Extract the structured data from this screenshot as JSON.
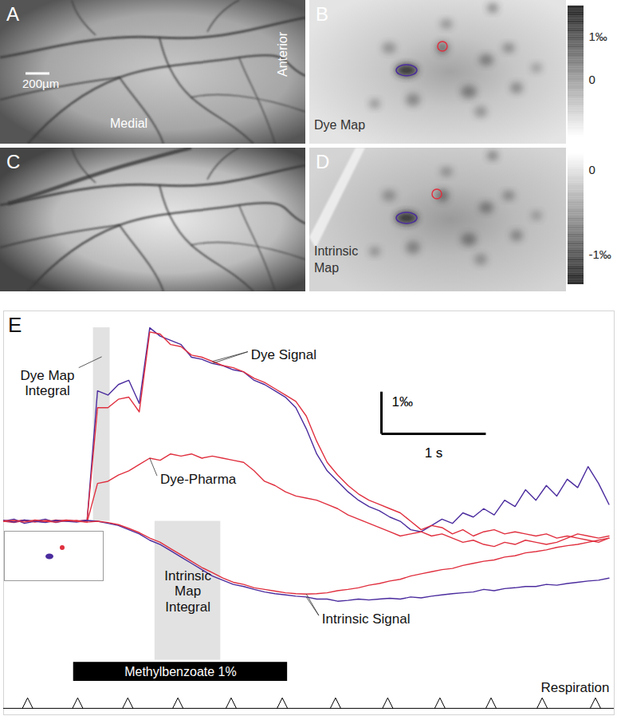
{
  "images": {
    "A": {
      "label": "A",
      "scale_bar": "200µm",
      "texts": [
        "Medial",
        "Anterior"
      ]
    },
    "B": {
      "label": "B",
      "caption": "Dye Map",
      "colorbar": {
        "range": [
          -1.3,
          1.7
        ],
        "ticks": [
          {
            "value": 1,
            "label": "1‰"
          },
          0
        ],
        "colors": [
          "#ffffff",
          "#1e1e1e"
        ]
      }
    },
    "C": {
      "label": "C"
    },
    "D": {
      "label": "D",
      "caption": "Intrinsic Map",
      "colorbar": {
        "range": [
          -1.35,
          0.2
        ],
        "ticks": [
          0,
          {
            "value": -1,
            "label": "-1‰"
          }
        ],
        "colors": [
          "#1e1e1e",
          "#ffffff"
        ]
      }
    }
  },
  "chart_data": {
    "type": "line",
    "title": "E",
    "tick_labels": false,
    "xlim": [
      0,
      5.85
    ],
    "ylim": [
      -4.6,
      5.0
    ],
    "x": [
      0.0,
      0.1,
      0.2,
      0.3,
      0.4,
      0.5,
      0.6,
      0.7,
      0.8,
      0.9,
      1.0,
      1.1,
      1.2,
      1.3,
      1.4,
      1.5,
      1.6,
      1.7,
      1.8,
      1.9,
      2.0,
      2.1,
      2.2,
      2.3,
      2.4,
      2.5,
      2.6,
      2.7,
      2.8,
      2.9,
      3.0,
      3.1,
      3.2,
      3.3,
      3.4,
      3.5,
      3.6,
      3.7,
      3.8,
      3.9,
      4.0,
      4.1,
      4.2,
      4.3,
      4.4,
      4.5,
      4.6,
      4.7,
      4.8,
      4.9,
      5.0,
      5.1,
      5.2,
      5.3,
      5.4,
      5.5,
      5.6,
      5.7,
      5.8
    ],
    "series": [
      {
        "name": "Dye Signal",
        "color": "#4b2c9e",
        "values": [
          0.0,
          0.05,
          -0.05,
          0.0,
          0.05,
          -0.03,
          0.02,
          0.0,
          0.03,
          3.1,
          3.0,
          3.25,
          3.35,
          2.8,
          4.6,
          4.4,
          4.3,
          4.2,
          3.9,
          3.85,
          3.75,
          3.7,
          3.6,
          3.55,
          3.35,
          3.25,
          3.1,
          2.95,
          2.7,
          2.2,
          1.6,
          1.2,
          0.95,
          0.7,
          0.5,
          0.35,
          0.25,
          0.1,
          0.0,
          -0.2,
          -0.25,
          -0.1,
          0.05,
          -0.05,
          0.2,
          0.1,
          0.3,
          0.15,
          0.5,
          0.35,
          0.75,
          0.5,
          0.85,
          0.6,
          1.0,
          0.8,
          1.3,
          0.9,
          0.4
        ]
      },
      {
        "name": "Dye Signal",
        "color": "#e0303f",
        "values": [
          0.02,
          0.0,
          0.03,
          -0.02,
          0.02,
          0.0,
          0.03,
          0.0,
          0.02,
          2.7,
          2.7,
          2.9,
          2.95,
          2.6,
          4.5,
          4.45,
          4.2,
          4.15,
          3.95,
          3.9,
          3.8,
          3.7,
          3.65,
          3.55,
          3.4,
          3.3,
          3.15,
          3.0,
          2.85,
          2.5,
          1.9,
          1.4,
          1.1,
          0.85,
          0.65,
          0.5,
          0.4,
          0.3,
          0.2,
          0.0,
          -0.2,
          -0.1,
          -0.15,
          -0.3,
          -0.2,
          -0.35,
          -0.25,
          -0.2,
          -0.3,
          -0.25,
          -0.3,
          -0.35,
          -0.3,
          -0.4,
          -0.35,
          -0.4,
          -0.45,
          -0.5,
          -0.4
        ]
      },
      {
        "name": "Dye-Pharma",
        "color": "#e0303f",
        "values": [
          0.0,
          -0.03,
          0.02,
          0.0,
          -0.02,
          0.03,
          0.0,
          0.02,
          -0.02,
          0.9,
          0.95,
          1.1,
          1.2,
          1.35,
          1.5,
          1.45,
          1.6,
          1.55,
          1.6,
          1.5,
          1.55,
          1.5,
          1.45,
          1.4,
          1.2,
          0.95,
          0.85,
          0.7,
          0.6,
          0.55,
          0.5,
          0.4,
          0.3,
          0.15,
          0.05,
          -0.05,
          -0.15,
          -0.25,
          -0.35,
          -0.3,
          -0.25,
          -0.35,
          -0.3,
          -0.4,
          -0.5,
          -0.45,
          -0.55,
          -0.6,
          -0.5,
          -0.55,
          -0.45,
          -0.5,
          -0.55,
          -0.5,
          -0.4,
          -0.3,
          -0.35,
          -0.4,
          -0.35
        ]
      },
      {
        "name": "Intrinsic Signal",
        "color": "#4b2c9e",
        "values": [
          0.02,
          -0.02,
          0.03,
          0.0,
          -0.03,
          0.02,
          0.0,
          -0.02,
          0.02,
          0.0,
          -0.05,
          -0.1,
          -0.2,
          -0.3,
          -0.45,
          -0.55,
          -0.7,
          -0.85,
          -1.0,
          -1.15,
          -1.3,
          -1.4,
          -1.5,
          -1.55,
          -1.62,
          -1.68,
          -1.72,
          -1.75,
          -1.78,
          -1.8,
          -1.85,
          -1.85,
          -1.9,
          -1.88,
          -1.85,
          -1.87,
          -1.85,
          -1.83,
          -1.85,
          -1.8,
          -1.82,
          -1.78,
          -1.75,
          -1.72,
          -1.7,
          -1.68,
          -1.62,
          -1.65,
          -1.6,
          -1.58,
          -1.55,
          -1.55,
          -1.5,
          -1.52,
          -1.48,
          -1.45,
          -1.42,
          -1.4,
          -1.35
        ]
      },
      {
        "name": "Intrinsic Signal",
        "color": "#e0303f",
        "values": [
          0.0,
          0.02,
          -0.02,
          0.03,
          0.0,
          -0.02,
          0.02,
          0.0,
          -0.02,
          0.0,
          -0.03,
          -0.08,
          -0.17,
          -0.27,
          -0.4,
          -0.5,
          -0.65,
          -0.8,
          -0.95,
          -1.1,
          -1.22,
          -1.35,
          -1.45,
          -1.5,
          -1.58,
          -1.62,
          -1.66,
          -1.7,
          -1.72,
          -1.73,
          -1.72,
          -1.7,
          -1.65,
          -1.62,
          -1.58,
          -1.52,
          -1.48,
          -1.42,
          -1.38,
          -1.3,
          -1.25,
          -1.2,
          -1.15,
          -1.12,
          -1.05,
          -1.0,
          -0.95,
          -0.92,
          -0.85,
          -0.82,
          -0.75,
          -0.72,
          -0.68,
          -0.62,
          -0.58,
          -0.55,
          -0.5,
          -0.45,
          -0.4
        ]
      }
    ],
    "shaded_regions": [
      {
        "label": "Dye Map Integral",
        "x": [
          0.86,
          1.02
        ],
        "y": [
          0,
          4.6
        ]
      },
      {
        "label": "Intrinsic Map Integral",
        "x": [
          1.45,
          2.08
        ],
        "y": [
          -3.3,
          0
        ]
      }
    ],
    "stimulus": {
      "label": "Methylbenzoate 1%",
      "start": 0.67,
      "end": 2.72
    },
    "respiration": {
      "label": "Respiration",
      "peaks": [
        0.23,
        0.71,
        1.19,
        1.67,
        2.18,
        2.67,
        3.18,
        3.68,
        4.18,
        4.67,
        5.16,
        5.67
      ]
    },
    "scale_bar": {
      "x": 1,
      "x_label": "1 s",
      "y": 1,
      "y_label": "1‰"
    }
  }
}
